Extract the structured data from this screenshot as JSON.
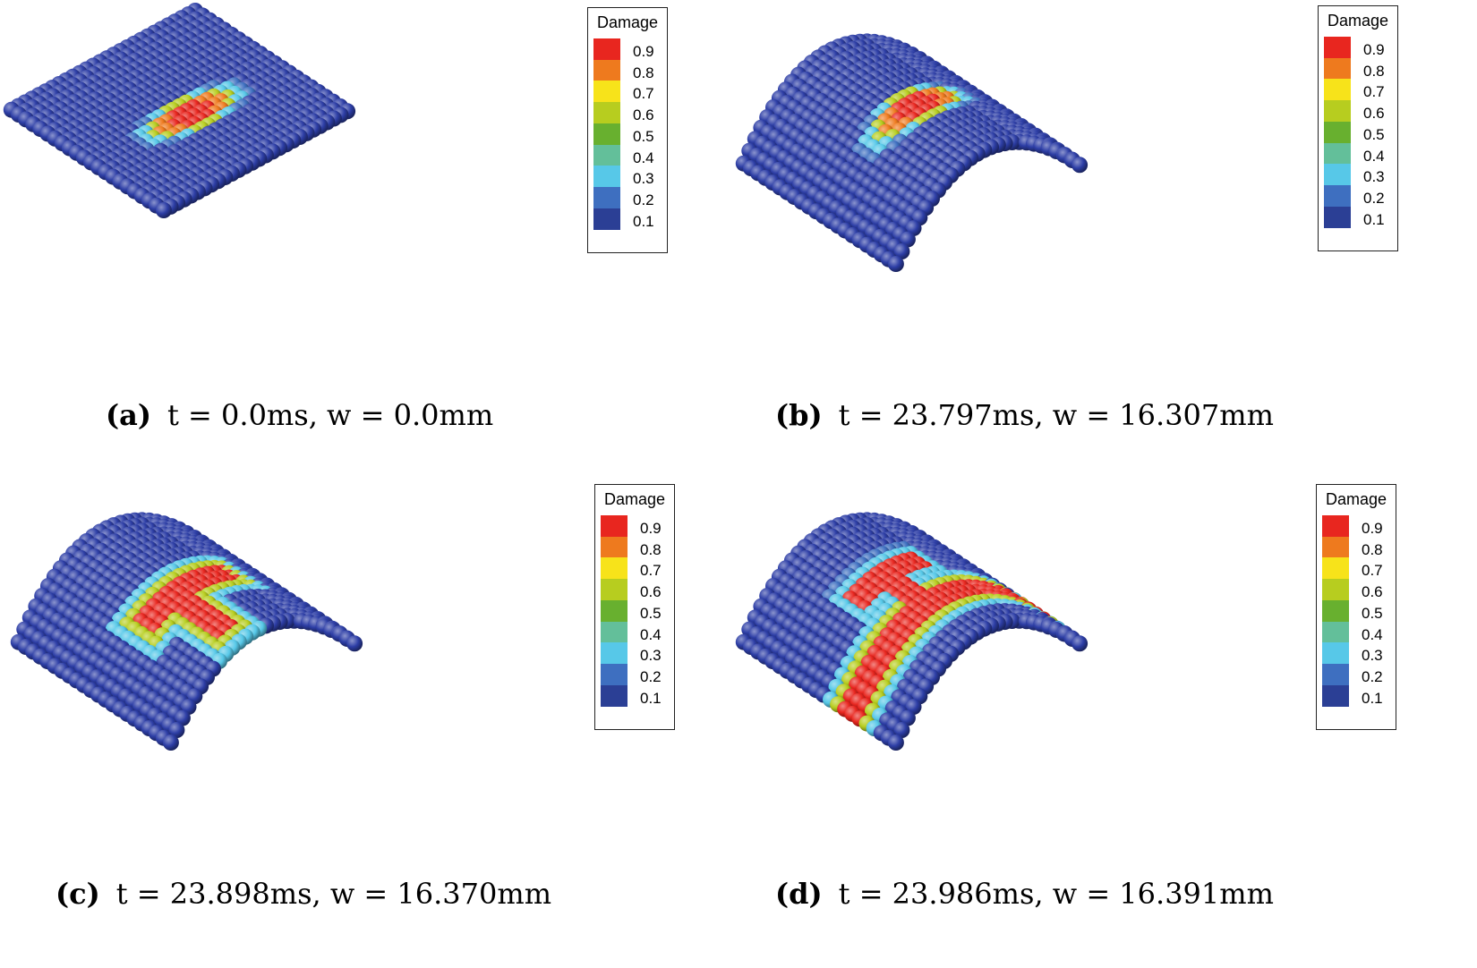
{
  "figure": {
    "panels": [
      {
        "id": "a",
        "label": "(a)",
        "caption": "t = 0.0ms, w = 0.0mm",
        "time_ms": 0.0,
        "deflection_mm": 0.0,
        "damage_pattern": "central-ellipse",
        "curved": false
      },
      {
        "id": "b",
        "label": "(b)",
        "caption": "t = 23.797ms, w = 16.307mm",
        "time_ms": 23.797,
        "deflection_mm": 16.307,
        "damage_pattern": "central-ellipse",
        "curved": true
      },
      {
        "id": "c",
        "label": "(c)",
        "caption": "t = 23.898ms, w = 16.370mm",
        "time_ms": 23.898,
        "deflection_mm": 16.37,
        "damage_pattern": "branching-crack",
        "curved": true
      },
      {
        "id": "d",
        "label": "(d)",
        "caption": "t = 23.986ms, w = 16.391mm",
        "time_ms": 23.986,
        "deflection_mm": 16.391,
        "damage_pattern": "through-crack",
        "curved": true
      }
    ],
    "legend": {
      "title": "Damage",
      "ticks": [
        "0.9",
        "0.8",
        "0.7",
        "0.6",
        "0.5",
        "0.4",
        "0.3",
        "0.2",
        "0.1"
      ],
      "colors": [
        "#e8261f",
        "#ee7a1e",
        "#f7e31a",
        "#b7cd1f",
        "#68b02f",
        "#63bf9a",
        "#57c8e8",
        "#3e6fc0",
        "#2b3f95"
      ]
    },
    "particle_base_color": "#2d3ea6"
  }
}
